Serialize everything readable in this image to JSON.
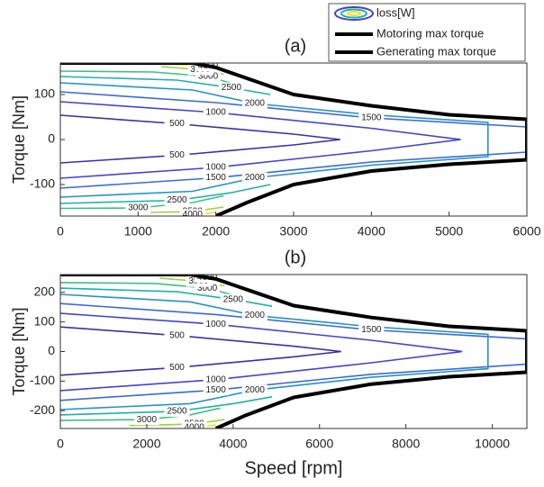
{
  "chart_data": [
    {
      "type": "contour",
      "title": "(a)",
      "ylabel": "Torque [Nm]",
      "contour_name": "loss[W]",
      "xlim": [
        0,
        6000
      ],
      "xticks": [
        0,
        1000,
        2000,
        3000,
        4000,
        5000,
        6000
      ],
      "ylim": [
        -170,
        170
      ],
      "yticks": [
        -100,
        0,
        100
      ],
      "contours": [
        {
          "level": 500,
          "color": "#3b2fa8",
          "x": [
            0,
            1500,
            3000,
            3600,
            3000,
            1500,
            0
          ],
          "y": [
            54,
            35,
            12,
            0,
            -12,
            -35,
            -52
          ]
        },
        {
          "level": 1000,
          "color": "#4343d0",
          "x": [
            0,
            2000,
            4000,
            5150,
            4000,
            2000,
            0
          ],
          "y": [
            84,
            60,
            25,
            0,
            -25,
            -62,
            -86
          ]
        },
        {
          "level": 1500,
          "color": "#3a6ad8",
          "x": [
            0,
            2000,
            4000,
            6000,
            6000,
            4000,
            2000,
            0
          ],
          "y": [
            106,
            82,
            48,
            28,
            -28,
            -50,
            -85,
            -108
          ]
        },
        {
          "level": 2000,
          "color": "#2492c8",
          "x": [
            0,
            1700,
            2500,
            4000,
            5500,
            5500,
            4000,
            2500,
            1700,
            0
          ],
          "y": [
            126,
            110,
            80,
            55,
            38,
            -38,
            -57,
            -85,
            -115,
            -128
          ]
        },
        {
          "level": 2500,
          "color": "#1fb0a8",
          "x": [
            0,
            1500,
            2200,
            2700,
            null,
            2700,
            2200,
            1500,
            0
          ],
          "y": [
            140,
            132,
            115,
            100,
            null,
            -100,
            -118,
            -135,
            -142
          ]
        },
        {
          "level": 3000,
          "color": "#3cc080",
          "x": [
            0,
            1200,
            1900,
            2200,
            null,
            2100,
            1700,
            1000,
            0
          ],
          "y": [
            152,
            150,
            140,
            125,
            null,
            -125,
            -140,
            -152,
            -153
          ]
        },
        {
          "level": 3500,
          "color": "#a0d040",
          "x": [
            1300,
            1800,
            2100,
            null,
            2100,
            1700,
            900
          ],
          "y": [
            162,
            155,
            145,
            null,
            -150,
            -160,
            -163
          ]
        },
        {
          "level": 4000,
          "color": "#f0e020",
          "x": [
            1500,
            1900,
            null,
            2000,
            1700
          ],
          "y": [
            167,
            163,
            null,
            -162,
            -167
          ]
        }
      ],
      "series": [
        {
          "name": "Motoring max torque",
          "color": "#000000",
          "x": [
            0,
            1700,
            2000,
            2500,
            3000,
            4000,
            5000,
            6000,
            6000
          ],
          "values": [
            170,
            170,
            160,
            130,
            100,
            75,
            55,
            45,
            -45
          ]
        },
        {
          "name": "Generating max torque",
          "color": "#000000",
          "x": [
            2000,
            2400,
            3000,
            4000,
            5000,
            6000,
            6000
          ],
          "values": [
            -170,
            -140,
            -100,
            -70,
            -55,
            -45,
            45
          ]
        }
      ]
    },
    {
      "type": "contour",
      "title": "(b)",
      "ylabel": "Torque [Nm]",
      "xlabel": "Speed [rpm]",
      "xlim": [
        0,
        10800
      ],
      "xticks": [
        0,
        2000,
        4000,
        6000,
        8000,
        10000
      ],
      "ylim": [
        -260,
        260
      ],
      "yticks": [
        -200,
        -100,
        0,
        100,
        200
      ],
      "contours": [
        {
          "level": 500,
          "color": "#3b2fa8",
          "x": [
            0,
            2700,
            5400,
            6500,
            5400,
            2700,
            0
          ],
          "y": [
            83,
            54,
            18,
            0,
            -18,
            -54,
            -80
          ]
        },
        {
          "level": 1000,
          "color": "#4343d0",
          "x": [
            0,
            3600,
            7200,
            9300,
            7200,
            3600,
            0
          ],
          "y": [
            129,
            92,
            38,
            0,
            -38,
            -95,
            -132
          ]
        },
        {
          "level": 1500,
          "color": "#3a6ad8",
          "x": [
            0,
            3600,
            7200,
            10800,
            10800,
            7200,
            3600,
            0
          ],
          "y": [
            162,
            125,
            73,
            43,
            -43,
            -77,
            -130,
            -165
          ]
        },
        {
          "level": 2000,
          "color": "#2492c8",
          "x": [
            0,
            3000,
            4500,
            7200,
            9900,
            9900,
            7200,
            4500,
            3000,
            0
          ],
          "y": [
            193,
            168,
            122,
            84,
            58,
            -58,
            -87,
            -130,
            -176,
            -196
          ]
        },
        {
          "level": 2500,
          "color": "#1fb0a8",
          "x": [
            0,
            2700,
            4000,
            4900,
            null,
            4900,
            4000,
            2700,
            0
          ],
          "y": [
            214,
            202,
            176,
            153,
            null,
            -153,
            -176,
            -202,
            -214
          ]
        },
        {
          "level": 3000,
          "color": "#3cc080",
          "x": [
            0,
            2200,
            3400,
            4000,
            null,
            3700,
            3000,
            2000,
            0
          ],
          "y": [
            233,
            230,
            214,
            191,
            null,
            -191,
            -214,
            -230,
            -233
          ]
        },
        {
          "level": 3500,
          "color": "#a0d040",
          "x": [
            2300,
            3200,
            3800,
            null,
            3800,
            3100,
            1600
          ],
          "y": [
            248,
            237,
            222,
            null,
            -230,
            -245,
            -250
          ]
        },
        {
          "level": 4000,
          "color": "#f0e020",
          "x": [
            2700,
            3400,
            null,
            3600,
            3100
          ],
          "y": [
            256,
            250,
            null,
            -248,
            -256
          ]
        }
      ],
      "series": [
        {
          "color": "#000000",
          "x": [
            0,
            3000,
            3600,
            4500,
            5400,
            7200,
            9000,
            10800,
            10800
          ],
          "values": [
            260,
            260,
            245,
            200,
            155,
            115,
            85,
            70,
            -70
          ]
        },
        {
          "color": "#000000",
          "x": [
            3600,
            4300,
            5400,
            7200,
            9000,
            10800,
            10800
          ],
          "values": [
            -260,
            -215,
            -155,
            -110,
            -85,
            -70,
            70
          ]
        }
      ]
    }
  ]
}
